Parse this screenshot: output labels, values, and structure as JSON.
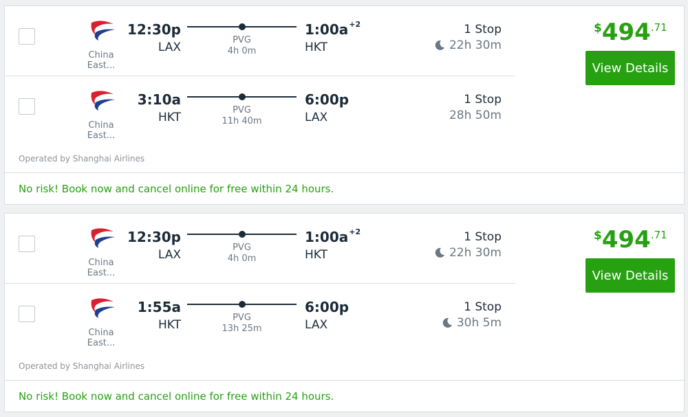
{
  "colors": {
    "accent_green": "#27a012",
    "text_dark": "#1c2b39",
    "text_muted": "#6b7782",
    "border": "#d9dde1",
    "logo_red": "#d8202f",
    "logo_blue": "#1f3f8f"
  },
  "results": [
    {
      "price": {
        "currency": "$",
        "whole": "494",
        "cents": ".71"
      },
      "view_details_label": "View Details",
      "operated_by": "Operated by Shanghai Airlines",
      "promo": "No risk! Book now and cancel online for free within 24 hours.",
      "legs": [
        {
          "airline": "China East...",
          "dep_time": "12:30p",
          "dep_code": "LAX",
          "stop_code": "PVG",
          "layover": "4h 0m",
          "arr_time": "1:00a",
          "arr_offset": "+2",
          "arr_code": "HKT",
          "stops": "1 Stop",
          "duration": "22h 30m",
          "overnight_icon": "moon-icon",
          "overnight": true
        },
        {
          "airline": "China East...",
          "dep_time": "3:10a",
          "dep_code": "HKT",
          "stop_code": "PVG",
          "layover": "11h 40m",
          "arr_time": "6:00p",
          "arr_offset": "",
          "arr_code": "LAX",
          "stops": "1 Stop",
          "duration": "28h 50m",
          "overnight": false
        }
      ]
    },
    {
      "price": {
        "currency": "$",
        "whole": "494",
        "cents": ".71"
      },
      "view_details_label": "View Details",
      "operated_by": "Operated by Shanghai Airlines",
      "promo": "No risk! Book now and cancel online for free within 24 hours.",
      "legs": [
        {
          "airline": "China East...",
          "dep_time": "12:30p",
          "dep_code": "LAX",
          "stop_code": "PVG",
          "layover": "4h 0m",
          "arr_time": "1:00a",
          "arr_offset": "+2",
          "arr_code": "HKT",
          "stops": "1 Stop",
          "duration": "22h 30m",
          "overnight_icon": "moon-icon",
          "overnight": true
        },
        {
          "airline": "China East...",
          "dep_time": "1:55a",
          "dep_code": "HKT",
          "stop_code": "PVG",
          "layover": "13h 25m",
          "arr_time": "6:00p",
          "arr_offset": "",
          "arr_code": "LAX",
          "stops": "1 Stop",
          "duration": "30h 5m",
          "overnight_icon": "moon-icon",
          "overnight": true
        }
      ]
    }
  ]
}
